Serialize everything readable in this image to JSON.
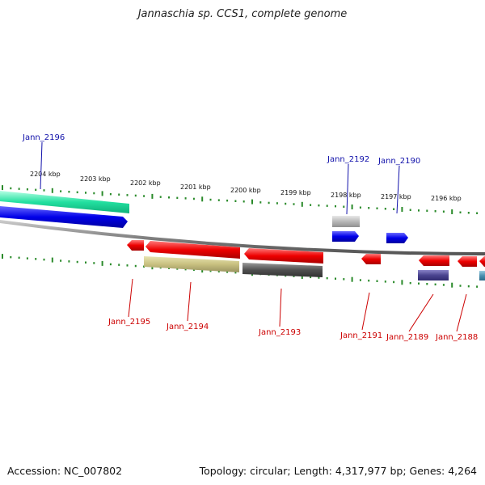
{
  "title": "Jannaschia sp. CCS1, complete genome",
  "footer": {
    "accession": "Accession: NC_007802",
    "summary": "Topology: circular; Length: 4,317,977 bp; Genes: 4,264"
  },
  "ruler_labels": [
    "2204 kbp",
    "2203 kbp",
    "2202 kbp",
    "2201 kbp",
    "2200 kbp",
    "2199 kbp",
    "2198 kbp",
    "2197 kbp",
    "2196 kbp"
  ],
  "genes_top": [
    "Jann_2196",
    "Jann_2192",
    "Jann_2190"
  ],
  "genes_bottom": [
    "Jann_2195",
    "Jann_2194",
    "Jann_2193",
    "Jann_2191",
    "Jann_2189",
    "Jann_2188"
  ],
  "colors": {
    "forward_label": "#1010aa",
    "reverse_label": "#cc0000",
    "tick": "#2a8a2a",
    "backbone": "#888888"
  }
}
